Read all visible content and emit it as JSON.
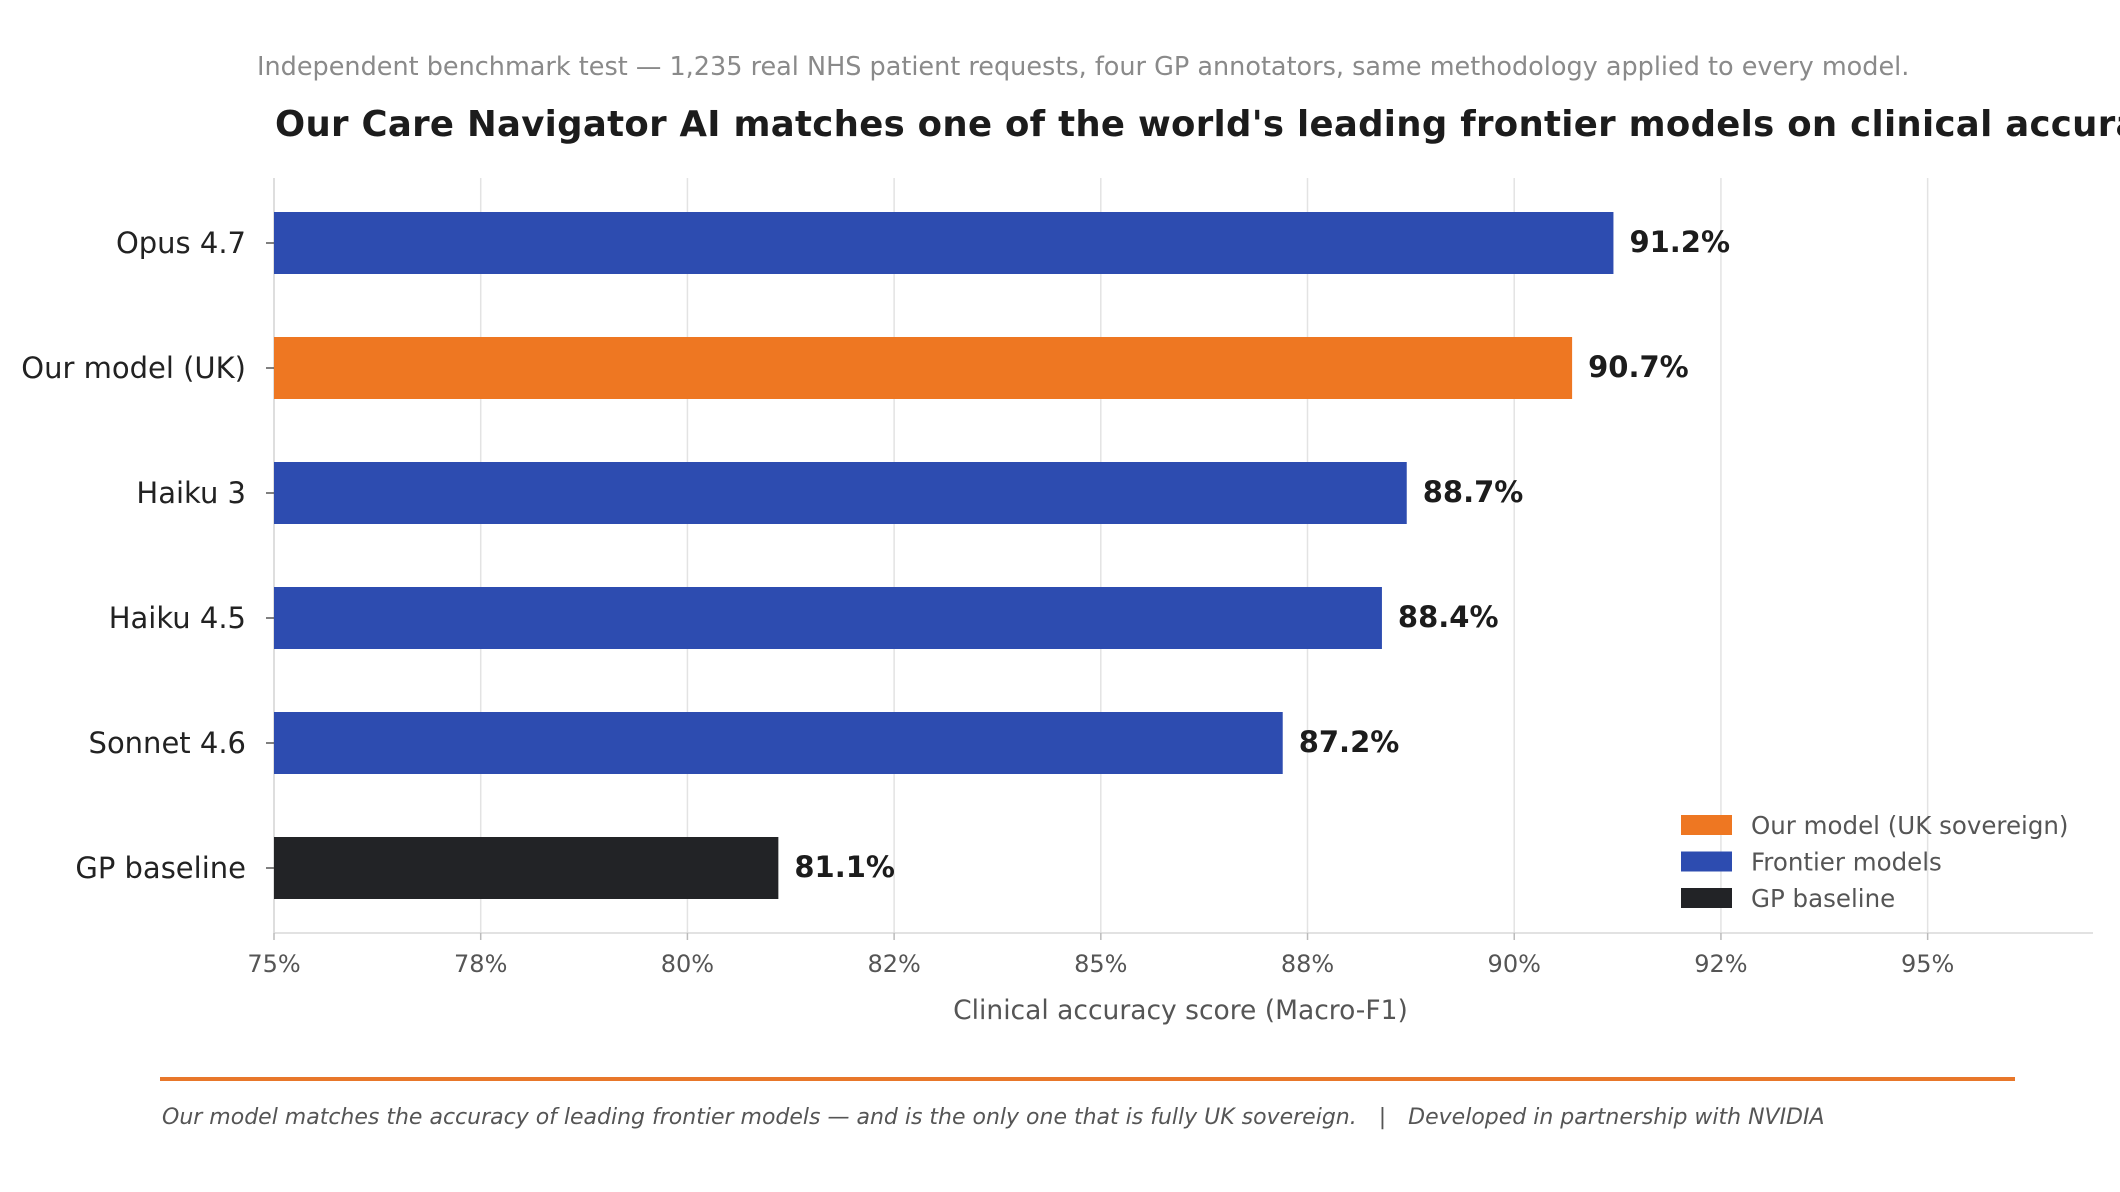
{
  "header": {
    "subtitle": "Independent benchmark test — 1,235 real NHS patient requests, four GP annotators, same methodology applied to every model.",
    "title": "Our Care Navigator AI matches one of the world's leading frontier models on clinical accuracy"
  },
  "footer": {
    "note": "Our model matches the accuracy of leading frontier models — and is the only one that is fully UK sovereign.",
    "separator": "|",
    "partner": "Developed in partnership with NVIDIA"
  },
  "colors": {
    "ours": "#ee7722",
    "frontier": "#2d4cb0",
    "baseline": "#222326",
    "divider": "#e8772a"
  },
  "chart_data": {
    "type": "bar",
    "orientation": "horizontal",
    "title": "Our Care Navigator AI matches one of the world's leading frontier models on clinical accuracy",
    "xlabel": "Clinical accuracy score (Macro-F1)",
    "ylabel": "",
    "xlim": [
      75,
      97
    ],
    "tick_values": [
      75,
      77.5,
      80,
      82.5,
      85,
      87.5,
      90,
      92.5,
      95
    ],
    "tick_labels": [
      "75%",
      "78%",
      "80%",
      "82%",
      "85%",
      "88%",
      "90%",
      "92%",
      "95%"
    ],
    "grid": "vertical",
    "legend_position": "bottom-right",
    "categories": [
      "Opus 4.7",
      "Our model (UK)",
      "Haiku 3",
      "Haiku 4.5",
      "Sonnet 4.6",
      "GP baseline"
    ],
    "values": [
      91.2,
      90.7,
      88.7,
      88.4,
      87.2,
      81.1
    ],
    "value_labels": [
      "91.2%",
      "90.7%",
      "88.7%",
      "88.4%",
      "87.2%",
      "81.1%"
    ],
    "bar_groups": [
      "frontier",
      "ours",
      "frontier",
      "frontier",
      "frontier",
      "baseline"
    ],
    "legend": [
      {
        "key": "ours",
        "label": "Our model (UK sovereign)"
      },
      {
        "key": "frontier",
        "label": "Frontier models"
      },
      {
        "key": "baseline",
        "label": "GP baseline"
      }
    ]
  }
}
